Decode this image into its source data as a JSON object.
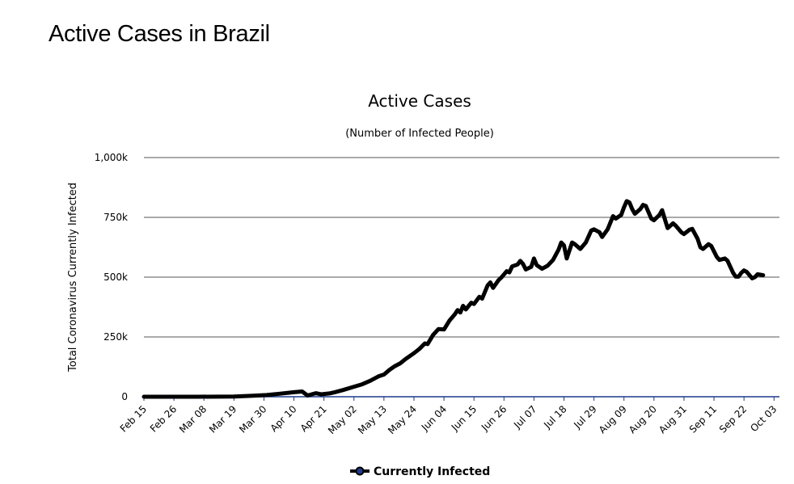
{
  "page": {
    "heading": "Active Cases in Brazil"
  },
  "colors": {
    "line": "#000000",
    "grid": "#555555",
    "baseline": "#1f3a8a",
    "legend_marker_fill": "#1f3a8a"
  },
  "chart_data": {
    "type": "line",
    "title": "Active Cases",
    "subtitle": "(Number of Infected People)",
    "ylabel": "Total Coronavirus Currently Infected",
    "xlabel": "",
    "ylim": [
      0,
      1000000
    ],
    "y_ticks": [
      {
        "value": 0,
        "label": "0"
      },
      {
        "value": 250000,
        "label": "250k"
      },
      {
        "value": 500000,
        "label": "500k"
      },
      {
        "value": 750000,
        "label": "750k"
      },
      {
        "value": 1000000,
        "label": "1,000k"
      }
    ],
    "day_count": 233,
    "x_ticks": [
      {
        "day": 0,
        "label": "Feb 15"
      },
      {
        "day": 11,
        "label": "Feb 26"
      },
      {
        "day": 22,
        "label": "Mar 08"
      },
      {
        "day": 33,
        "label": "Mar 19"
      },
      {
        "day": 44,
        "label": "Mar 30"
      },
      {
        "day": 55,
        "label": "Apr 10"
      },
      {
        "day": 66,
        "label": "Apr 21"
      },
      {
        "day": 77,
        "label": "May 02"
      },
      {
        "day": 88,
        "label": "May 13"
      },
      {
        "day": 99,
        "label": "May 24"
      },
      {
        "day": 110,
        "label": "Jun 04"
      },
      {
        "day": 121,
        "label": "Jun 15"
      },
      {
        "day": 132,
        "label": "Jun 26"
      },
      {
        "day": 143,
        "label": "Jul 07"
      },
      {
        "day": 154,
        "label": "Jul 18"
      },
      {
        "day": 165,
        "label": "Jul 29"
      },
      {
        "day": 176,
        "label": "Aug 09"
      },
      {
        "day": 187,
        "label": "Aug 20"
      },
      {
        "day": 198,
        "label": "Aug 31"
      },
      {
        "day": 209,
        "label": "Sep 11"
      },
      {
        "day": 220,
        "label": "Sep 22"
      },
      {
        "day": 231,
        "label": "Oct 03"
      }
    ],
    "series": [
      {
        "name": "Currently Infected",
        "points": [
          [
            0,
            0
          ],
          [
            20,
            0
          ],
          [
            33,
            1000
          ],
          [
            40,
            4000
          ],
          [
            45,
            7000
          ],
          [
            50,
            13000
          ],
          [
            55,
            19000
          ],
          [
            58,
            22000
          ],
          [
            60,
            5000
          ],
          [
            63,
            15000
          ],
          [
            65,
            10000
          ],
          [
            68,
            14000
          ],
          [
            70,
            19000
          ],
          [
            73,
            28000
          ],
          [
            77,
            42000
          ],
          [
            80,
            52000
          ],
          [
            83,
            67000
          ],
          [
            86,
            85000
          ],
          [
            88,
            93000
          ],
          [
            90,
            112000
          ],
          [
            92,
            128000
          ],
          [
            94,
            140000
          ],
          [
            96,
            158000
          ],
          [
            99,
            182000
          ],
          [
            101,
            200000
          ],
          [
            103,
            223000
          ],
          [
            104,
            220000
          ],
          [
            106,
            258000
          ],
          [
            108,
            283000
          ],
          [
            110,
            281000
          ],
          [
            112,
            318000
          ],
          [
            114,
            345000
          ],
          [
            115,
            362000
          ],
          [
            116,
            352000
          ],
          [
            117,
            380000
          ],
          [
            118,
            365000
          ],
          [
            120,
            393000
          ],
          [
            121,
            388000
          ],
          [
            123,
            418000
          ],
          [
            124,
            410000
          ],
          [
            126,
            465000
          ],
          [
            127,
            478000
          ],
          [
            128,
            455000
          ],
          [
            130,
            487000
          ],
          [
            131,
            498000
          ],
          [
            133,
            525000
          ],
          [
            134,
            520000
          ],
          [
            135,
            545000
          ],
          [
            137,
            553000
          ],
          [
            138,
            568000
          ],
          [
            139,
            555000
          ],
          [
            140,
            532000
          ],
          [
            142,
            543000
          ],
          [
            143,
            578000
          ],
          [
            144,
            550000
          ],
          [
            146,
            535000
          ],
          [
            148,
            548000
          ],
          [
            150,
            572000
          ],
          [
            152,
            615000
          ],
          [
            153,
            645000
          ],
          [
            154,
            633000
          ],
          [
            155,
            578000
          ],
          [
            157,
            645000
          ],
          [
            158,
            638000
          ],
          [
            160,
            618000
          ],
          [
            162,
            645000
          ],
          [
            164,
            695000
          ],
          [
            165,
            700000
          ],
          [
            167,
            688000
          ],
          [
            168,
            668000
          ],
          [
            170,
            700000
          ],
          [
            172,
            755000
          ],
          [
            173,
            745000
          ],
          [
            175,
            760000
          ],
          [
            176,
            792000
          ],
          [
            177,
            818000
          ],
          [
            178,
            812000
          ],
          [
            179,
            785000
          ],
          [
            180,
            765000
          ],
          [
            182,
            785000
          ],
          [
            183,
            802000
          ],
          [
            184,
            798000
          ],
          [
            186,
            745000
          ],
          [
            187,
            738000
          ],
          [
            189,
            760000
          ],
          [
            190,
            780000
          ],
          [
            191,
            742000
          ],
          [
            192,
            705000
          ],
          [
            193,
            715000
          ],
          [
            194,
            725000
          ],
          [
            195,
            715000
          ],
          [
            197,
            688000
          ],
          [
            198,
            680000
          ],
          [
            200,
            698000
          ],
          [
            201,
            702000
          ],
          [
            203,
            660000
          ],
          [
            204,
            625000
          ],
          [
            205,
            618000
          ],
          [
            207,
            638000
          ],
          [
            208,
            630000
          ],
          [
            210,
            585000
          ],
          [
            211,
            572000
          ],
          [
            213,
            578000
          ],
          [
            214,
            568000
          ],
          [
            216,
            518000
          ],
          [
            217,
            502000
          ],
          [
            218,
            502000
          ],
          [
            219,
            518000
          ],
          [
            220,
            528000
          ],
          [
            221,
            522000
          ],
          [
            223,
            495000
          ],
          [
            224,
            500000
          ],
          [
            225,
            512000
          ],
          [
            226,
            510000
          ],
          [
            227,
            508000
          ]
        ]
      }
    ],
    "legend": {
      "position": "bottom-center",
      "items": [
        "Currently Infected"
      ]
    }
  }
}
